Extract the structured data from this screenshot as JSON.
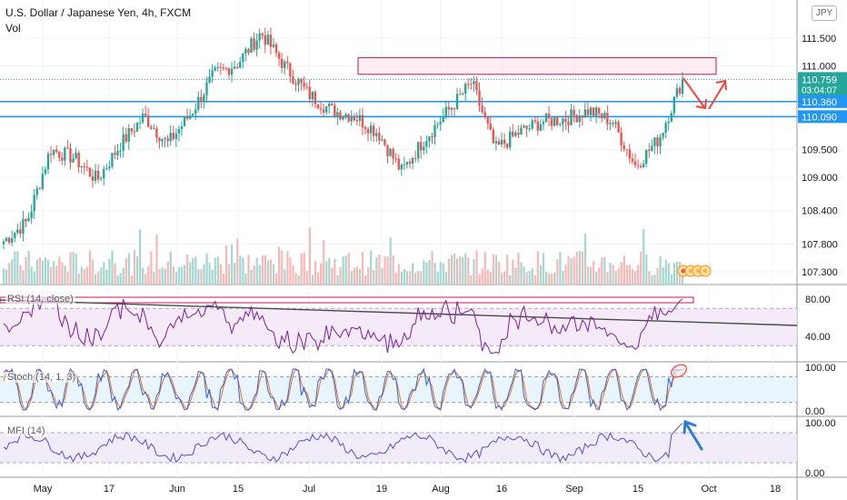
{
  "header": {
    "title": "U.S. Dollar / Japanese Yen, 4h, FXCM",
    "volume_label": "Vol",
    "currency_badge": "JPY"
  },
  "colors": {
    "up": "#26a69a",
    "down": "#ef5350",
    "vol_up": "#a5d6d0",
    "vol_down": "#f7b8b6",
    "hline": "#2196f3",
    "zone_stroke": "#c2185b",
    "zone_fill": "#fde6ec",
    "arrow_red": "#f44336",
    "arrow_blue": "#2f7fd1",
    "rsi_line": "#7b1fa2",
    "rsi_band": "#f3e5f5",
    "stoch_k": "#2962ff",
    "stoch_d": "#ff6d00",
    "stoch_band": "#e3f2fd",
    "mfi_line": "#5c4fc8",
    "mfi_band": "#ede7f6",
    "trendline": "#4a4a4a",
    "last_price_bg": "#26a69a",
    "axis_text": "#131722"
  },
  "price_axis": {
    "ticks": [
      "111.500",
      "111.000",
      "109.500",
      "109.000",
      "108.400",
      "107.800",
      "107.300"
    ],
    "tick_values": [
      111.5,
      111.0,
      109.5,
      109.0,
      108.4,
      107.8,
      107.3
    ],
    "last_price": "110.759",
    "countdown": "03:04:07",
    "level_1": "110.360",
    "level_2": "110.090",
    "level_1_value": 110.36,
    "level_2_value": 110.09,
    "last_price_value": 110.759
  },
  "indicators": {
    "rsi": {
      "label": "RSI (14, close)",
      "ticks": [
        "80.00",
        "40.00"
      ]
    },
    "stoch": {
      "label": "Stoch (14, 1, 3)",
      "ticks": [
        "100.00",
        "0.00"
      ]
    },
    "mfi": {
      "label": "MFI (14)",
      "ticks": [
        "100.00",
        "0.00"
      ]
    }
  },
  "time_axis": {
    "labels": [
      "May",
      "17",
      "Jun",
      "15",
      "Jul",
      "19",
      "Aug",
      "16",
      "Sep",
      "15",
      "Oct",
      "18"
    ]
  },
  "chart_data": {
    "type": "candlestick",
    "title": "U.S. Dollar / Japanese Yen, 4h, FXCM",
    "anchors": [
      [
        "May",
        107.85
      ],
      [
        "May",
        108.2
      ],
      [
        "17",
        109.5
      ],
      [
        "17",
        109.35
      ],
      [
        "17",
        108.95
      ],
      [
        "Jun",
        109.6
      ],
      [
        "Jun",
        110.1
      ],
      [
        "Jun",
        109.6
      ],
      [
        "15",
        110.15
      ],
      [
        "15",
        110.85
      ],
      [
        "15",
        111.05
      ],
      [
        "Jul",
        111.6
      ],
      [
        "Jul",
        111.0
      ],
      [
        "Jul",
        110.5
      ],
      [
        "19",
        110.2
      ],
      [
        "19",
        110.1
      ],
      [
        "19",
        109.8
      ],
      [
        "Aug",
        109.1
      ],
      [
        "Aug",
        109.7
      ],
      [
        "Aug",
        110.2
      ],
      [
        "16",
        110.7
      ],
      [
        "16",
        109.5
      ],
      [
        "16",
        109.8
      ],
      [
        "Sep",
        110.0
      ],
      [
        "Sep",
        110.05
      ],
      [
        "Sep",
        110.2
      ],
      [
        "15",
        110.0
      ],
      [
        "15",
        109.2
      ],
      [
        "15",
        109.7
      ],
      [
        "Oct",
        110.76
      ]
    ],
    "last_price": 110.759,
    "horizontal_levels": [
      110.36,
      110.09
    ],
    "resistance_zone": [
      110.85,
      111.15
    ],
    "indicators": [
      "Vol",
      "RSI (14, close)",
      "Stoch (14, 1, 3)",
      "MFI (14)"
    ],
    "ylim": [
      107.0,
      112.0
    ]
  }
}
